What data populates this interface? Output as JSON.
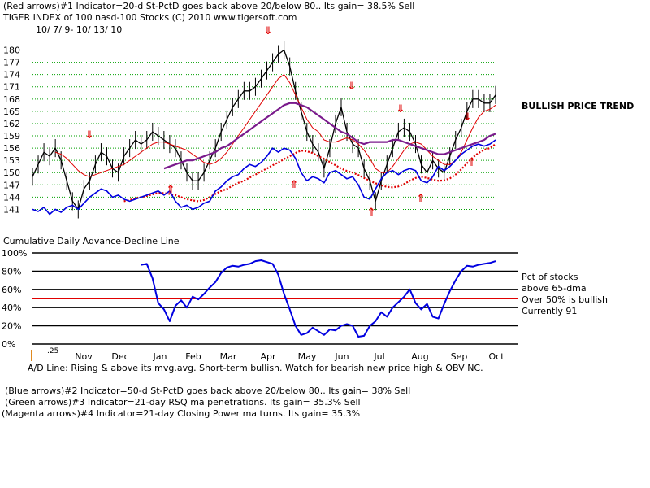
{
  "header": {
    "line1": "(Red arrows)#1 Indicator=20-d St-PctD goes back above 20/below 80.. Its gain= 38.5% Sell",
    "line2": "TIGER INDEX of  100 nasd-100 Stocks  (C) 2010  www.tigersoft.com",
    "line3": "10/ 7/ 9- 10/ 13/ 10"
  },
  "annotations": {
    "bullish_trend": "BULLISH PRICE TREND",
    "adline_title": "Cumulative Daily Advance-Decline Line",
    "pct_line1": "Pct of stocks",
    "pct_line2": "above 65-dma",
    "pct_line3": "Over 50% is bullish",
    "pct_line4": "Currently  91",
    "ad_status": "A/D Line: Rising & above its mvg.avg. Short-term bullish. Watch for bearish new price high & OBV NC.",
    "tick_stub": ".25"
  },
  "footer": {
    "line1": "(Blue arrows)#2 Indicator=50-d St-PctD goes back above 20/below 80.. Its gain= 38% Sell",
    "line2": "(Green arrows)#3 Indicator=21-day RSQ ma penetrations. Its gain= 35.3% Sell",
    "line3": "(Magenta arrows)#4 Indicator=21-day Closing Power ma turns. Its gain= 35.3%"
  },
  "colors": {
    "price": "#000000",
    "ma_red": "#e00000",
    "ma_purple": "#7a1a8c",
    "ad_line": "#0000e0",
    "grid": "#00a000",
    "arrow": "#e00000",
    "pct_line": "#0000e0",
    "bullish_line": "#e00000"
  },
  "chart_data": [
    {
      "type": "line",
      "title": "TIGER INDEX of  100 nasd-100 Stocks",
      "x_labels": [
        "Nov",
        "Dec",
        "Jan",
        "Feb",
        "Mar",
        "Apr",
        "May",
        "Jun",
        "Jul",
        "Aug",
        "Sep",
        "Oct"
      ],
      "y_ticks": [
        141,
        144,
        147,
        150,
        153,
        156,
        159,
        162,
        165,
        168,
        171,
        174,
        177,
        180
      ],
      "ylim": [
        138.5,
        181.5
      ],
      "grid": "horizontal dotted",
      "series": [
        {
          "name": "",
          "values": [
            149,
            152,
            155,
            154,
            156,
            153,
            148,
            143,
            141,
            146,
            148,
            152,
            155,
            154,
            151,
            150,
            154,
            156,
            158,
            157,
            158,
            160,
            159,
            158,
            157,
            156,
            153,
            150,
            148,
            148,
            150,
            153,
            156,
            160,
            163,
            166,
            168,
            170,
            170,
            171,
            173,
            175,
            177,
            179,
            180,
            176,
            170,
            165,
            160,
            157,
            155,
            151,
            156,
            162,
            166,
            160,
            157,
            156,
            151,
            148,
            143,
            148,
            152,
            156,
            160,
            161,
            160,
            157,
            152,
            150,
            153,
            151,
            150,
            154,
            158,
            161,
            165,
            168,
            168,
            167,
            167,
            169
          ]
        },
        {
          "name": "",
          "values": [
            null,
            null,
            null,
            null,
            155,
            154.5,
            153.5,
            152,
            150.5,
            149.5,
            149,
            149.5,
            150,
            150.5,
            151,
            151.5,
            152,
            153,
            154,
            155,
            156,
            157,
            157.5,
            157.5,
            157,
            156.5,
            156,
            155.5,
            154.5,
            153.5,
            152.5,
            152,
            152.5,
            153.5,
            155,
            157,
            159,
            161,
            163,
            165,
            167,
            169,
            171,
            173,
            174,
            172,
            169,
            166,
            163,
            161,
            160,
            158,
            157.5,
            157.5,
            158,
            158.5,
            158,
            157,
            155.5,
            153.5,
            151,
            150,
            150,
            151.5,
            153.5,
            155.5,
            157,
            157.5,
            157,
            155.5,
            154,
            153,
            152,
            152,
            153,
            155,
            158,
            161,
            163.5,
            165,
            165.5,
            166.5
          ]
        },
        {
          "name": "",
          "values": [
            null,
            null,
            null,
            null,
            null,
            null,
            null,
            null,
            null,
            null,
            null,
            null,
            null,
            null,
            null,
            null,
            null,
            null,
            null,
            null,
            null,
            null,
            null,
            151,
            151.5,
            152,
            152.5,
            153,
            153,
            153.5,
            154,
            154.5,
            155,
            156,
            156.5,
            157.5,
            158.5,
            159.5,
            160.5,
            161.5,
            162.5,
            163.5,
            164.5,
            165.5,
            166.5,
            167,
            167,
            166.5,
            166,
            165,
            164,
            163,
            162,
            161,
            160,
            159.5,
            158.5,
            157.5,
            157,
            157.5,
            157.5,
            157.5,
            157.5,
            158,
            158,
            157.5,
            157,
            156.5,
            156,
            155.5,
            155,
            154.5,
            154.5,
            155,
            155.5,
            156,
            156.5,
            157,
            157.5,
            158,
            159,
            159.5
          ]
        },
        {
          "name": "",
          "values": [
            null,
            null,
            null,
            null,
            null,
            null,
            null,
            null,
            null,
            null,
            null,
            null,
            null,
            null,
            null,
            null,
            143,
            143.3,
            143.7,
            144,
            144.3,
            144.7,
            145,
            145,
            144.8,
            144.5,
            144,
            143.5,
            143.2,
            143,
            143.3,
            144,
            144.8,
            145.5,
            146,
            146.8,
            147.5,
            148,
            148.8,
            149.5,
            150.3,
            151,
            151.8,
            152.5,
            153.3,
            154,
            154.8,
            155.4,
            155.2,
            154.8,
            154,
            153.4,
            152.6,
            151.8,
            151,
            150.4,
            150,
            149.4,
            148.7,
            148,
            147.4,
            146.9,
            146.5,
            146.4,
            146.6,
            147.2,
            148,
            148.7,
            149,
            148.7,
            148.3,
            148,
            148.1,
            148.6,
            149.5,
            150.8,
            152.3,
            153.7,
            154.8,
            155.6,
            156,
            157
          ]
        },
        {
          "name": "",
          "values": [
            141,
            140.5,
            141.5,
            139.8,
            141,
            140.3,
            141.5,
            142,
            141,
            142.5,
            144,
            145,
            146,
            145.5,
            144,
            144.5,
            143.5,
            143,
            143.5,
            144,
            144.5,
            145,
            145.5,
            144.5,
            145.5,
            143,
            141.5,
            142,
            141,
            141.5,
            142.5,
            143,
            145.5,
            146.5,
            148,
            149,
            149.5,
            151,
            152,
            151.5,
            152.5,
            154,
            156,
            155,
            156,
            155.5,
            153.5,
            150,
            148,
            149,
            148.5,
            147.5,
            150,
            150.5,
            149.5,
            148.5,
            149,
            147,
            144,
            143.5,
            146,
            148.5,
            150,
            150.5,
            149.5,
            150.5,
            151,
            150.5,
            148,
            147.5,
            149,
            151.5,
            150.5,
            151.5,
            153,
            154.5,
            155.5,
            156.5,
            157,
            156.5,
            157,
            158
          ]
        }
      ],
      "marker_labels": [
        "⇓",
        "⇓",
        "⇓",
        "⇓",
        "⇓",
        "⇑",
        "⇑",
        "⇑",
        "⇑",
        "⇑"
      ]
    },
    {
      "type": "line",
      "title": "",
      "y_ticks": [
        "100%",
        "80%",
        "60%",
        "40%",
        "20%",
        "0%"
      ],
      "y_values": [
        100,
        80,
        60,
        40,
        20,
        0
      ],
      "ylim": [
        0,
        100
      ],
      "bullish_threshold": 50,
      "series": [
        {
          "name": "",
          "values": [
            null,
            null,
            null,
            null,
            null,
            null,
            null,
            null,
            null,
            null,
            null,
            null,
            null,
            null,
            null,
            null,
            null,
            null,
            null,
            87,
            88,
            72,
            45,
            38,
            25,
            42,
            48,
            40,
            52,
            49,
            55,
            62,
            68,
            78,
            84,
            86,
            85,
            87,
            88,
            91,
            92,
            90,
            88,
            76,
            55,
            38,
            20,
            10,
            12,
            18,
            14,
            10,
            16,
            15,
            20,
            22,
            20,
            8,
            9,
            20,
            25,
            35,
            30,
            40,
            46,
            52,
            60,
            45,
            38,
            44,
            30,
            28,
            44,
            58,
            70,
            80,
            86,
            85,
            87,
            88,
            89,
            91
          ]
        }
      ]
    }
  ]
}
